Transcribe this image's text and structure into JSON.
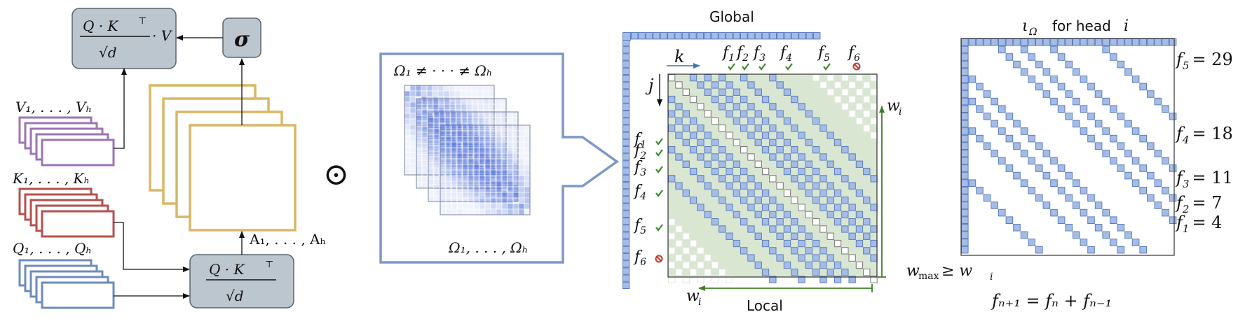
{
  "colors": {
    "box_fill": "#bcc6cf",
    "box_stroke": "#5a6570",
    "values": "#9b75b5",
    "keys": "#b5504c",
    "queries": "#6d8bbf",
    "attn_frame": "#d8b867",
    "mask_frame": "#7d98c6",
    "cell_fill": "#a4bce6",
    "cell_stroke": "#5d7fbf",
    "band_fill": "#d8e6d2",
    "check": "#3e8a2e",
    "cross": "#c0392b",
    "arrow_green": "#3f7f27"
  },
  "left": {
    "top_box": {
      "numer": "Q · K",
      "sup": "⊤",
      "denom": "√d",
      "tail": "· V"
    },
    "sigma": "σ",
    "values_label": "V₁, . . . , Vₕ",
    "keys_label": "K₁, . . . , Kₕ",
    "queries_label": "Q₁, . . . , Qₕ",
    "bottom_box": {
      "numer": "Q · K",
      "sup": "⊤",
      "denom": "√d"
    },
    "attn_label": "A₁, . . . , Aₕ",
    "hadamard": "⊙"
  },
  "masks": {
    "top_label": "Ω₁ ≠ · · · ≠ Ωₕ",
    "bottom_label": "Ω₁, . . . , Ωₕ"
  },
  "middle": {
    "global_label": "Global",
    "local_label": "Local",
    "k_label": "k",
    "j_label": "j",
    "w_label": "w",
    "w_sub": "i",
    "fib_labels": [
      "f1",
      "f2",
      "f3",
      "f4",
      "f5",
      "f6"
    ],
    "fib_status": [
      "check",
      "check",
      "check",
      "check",
      "check",
      "cross"
    ]
  },
  "right": {
    "title_iota": "ι",
    "title_sub": "Ω",
    "title_text": "for head",
    "title_i": "i",
    "fib_values": [
      {
        "name": "f",
        "sub": "5",
        "value": "= 29"
      },
      {
        "name": "f",
        "sub": "4",
        "value": "= 18"
      },
      {
        "name": "f",
        "sub": "3",
        "value": "= 11"
      },
      {
        "name": "f",
        "sub": "2",
        "value": "= 7"
      },
      {
        "name": "f",
        "sub": "1",
        "value": "= 4"
      }
    ],
    "wmax_text": "w",
    "wmax_sub": "max",
    "wmax_rest": "≥ w",
    "wmax_rest_sub": "i",
    "recurrence": "fₙ₊₁ = fₙ + fₙ₋₁"
  }
}
